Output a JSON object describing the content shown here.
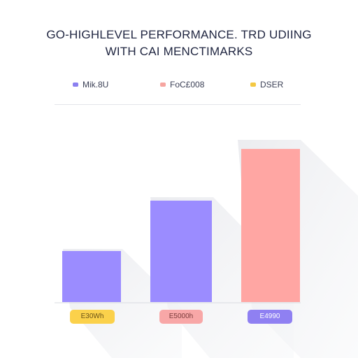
{
  "chart_data": {
    "type": "bar",
    "title_line1": "GO-HIGHLEVEL PERFORMANCE. TRD UDIING",
    "title_line2": "WITH CAI MENCTIMARKS",
    "legend": [
      {
        "label": "Mik.8U",
        "color": "#8b80f0"
      },
      {
        "label": "FoC£008",
        "color": "#f6a5a0"
      },
      {
        "label": "DSER",
        "color": "#f4c842"
      }
    ],
    "categories": [
      "E30Wh",
      "E5000h",
      "E4990"
    ],
    "values": [
      78,
      155,
      234
    ],
    "bar_colors": [
      "#9b8cff",
      "#9b8cff",
      "#ffa6a3"
    ],
    "badge_colors": [
      "#fbd14b",
      "#f8a7a7",
      "#8f80f2"
    ],
    "badge_text_colors": [
      "#6b5317",
      "#7a3b3b",
      "#ffffff"
    ],
    "ylim": [
      0,
      250
    ],
    "grid": false
  }
}
